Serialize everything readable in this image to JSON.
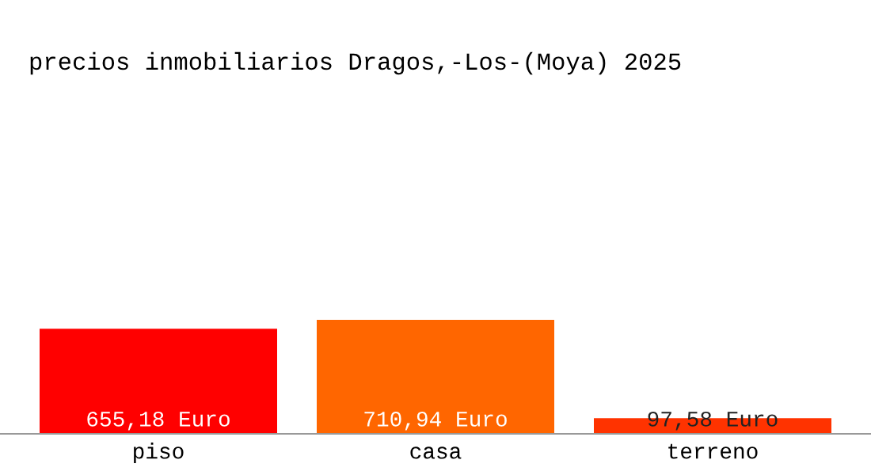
{
  "chart_data": {
    "type": "bar",
    "title": "precios inmobiliarios Dragos,-Los-(Moya) 2025",
    "categories": [
      "piso",
      "casa",
      "terreno"
    ],
    "values": [
      655.18,
      710.94,
      97.58
    ],
    "colors": [
      "#ff0000",
      "#ff6600",
      "#ff3300"
    ],
    "value_labels": [
      "655,18 Euro",
      "710,94 Euro",
      "97,58 Euro"
    ],
    "grid": false,
    "legend": false,
    "tick_labels": "x"
  }
}
